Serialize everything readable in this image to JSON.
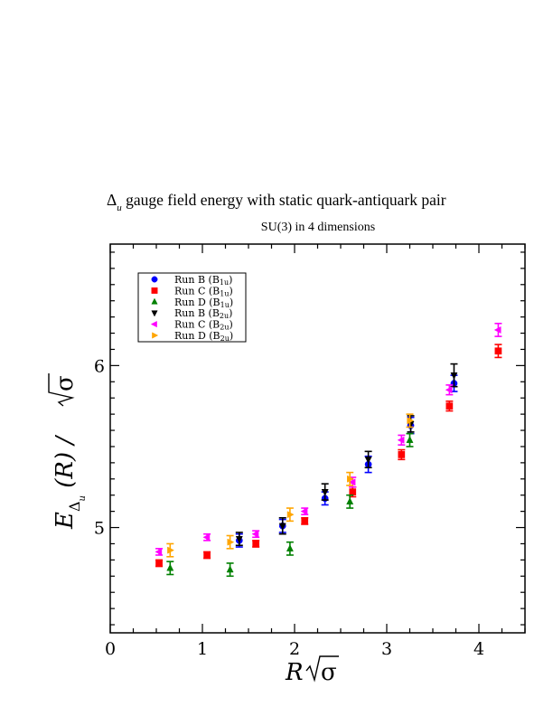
{
  "chart_data": {
    "type": "scatter",
    "title_symbol": "Δ",
    "title_subscript": "u",
    "title_rest": " gauge field energy with static quark-antiquark pair",
    "subtitle": "SU(3) in 4 dimensions",
    "xlabel_R": "R",
    "xlabel_sigma": "σ",
    "ylabel_E": "E",
    "ylabel_sub": "Δ",
    "ylabel_subsub": "u",
    "ylabel_mid": " (R) / ",
    "ylabel_sigma": "σ",
    "xlim": [
      0,
      4.5
    ],
    "ylim": [
      4.35,
      6.75
    ],
    "xticks": [
      0,
      1,
      2,
      3,
      4
    ],
    "yticks": [
      5,
      6
    ],
    "legend_position": "top-left",
    "series": [
      {
        "name": "Run B (B1u)",
        "legend_main": "Run B (B",
        "legend_sub": "1u",
        "legend_tail": ")",
        "marker": "circle",
        "color": "#0000ff",
        "points": [
          {
            "x": 1.4,
            "y": 4.92,
            "err": 0.04
          },
          {
            "x": 1.87,
            "y": 5.01,
            "err": 0.04
          },
          {
            "x": 2.33,
            "y": 5.18,
            "err": 0.04
          },
          {
            "x": 2.8,
            "y": 5.39,
            "err": 0.05
          },
          {
            "x": 3.26,
            "y": 5.63,
            "err": 0.05
          },
          {
            "x": 3.73,
            "y": 5.89,
            "err": 0.05
          }
        ]
      },
      {
        "name": "Run C (B1u)",
        "legend_main": "Run C (B",
        "legend_sub": "1u",
        "legend_tail": ")",
        "marker": "square",
        "color": "#ff0000",
        "points": [
          {
            "x": 0.53,
            "y": 4.78,
            "err": 0.02
          },
          {
            "x": 1.05,
            "y": 4.83,
            "err": 0.02
          },
          {
            "x": 1.58,
            "y": 4.9,
            "err": 0.02
          },
          {
            "x": 2.11,
            "y": 5.04,
            "err": 0.02
          },
          {
            "x": 2.63,
            "y": 5.22,
            "err": 0.03
          },
          {
            "x": 3.16,
            "y": 5.45,
            "err": 0.03
          },
          {
            "x": 3.68,
            "y": 5.75,
            "err": 0.03
          },
          {
            "x": 4.21,
            "y": 6.09,
            "err": 0.04
          }
        ]
      },
      {
        "name": "Run D (B1u)",
        "legend_main": "Run D (B",
        "legend_sub": "1u",
        "legend_tail": ")",
        "marker": "triangle-up",
        "color": "#008000",
        "points": [
          {
            "x": 0.65,
            "y": 4.75,
            "err": 0.04
          },
          {
            "x": 1.3,
            "y": 4.74,
            "err": 0.04
          },
          {
            "x": 1.95,
            "y": 4.87,
            "err": 0.04
          },
          {
            "x": 2.6,
            "y": 5.16,
            "err": 0.04
          },
          {
            "x": 3.25,
            "y": 5.54,
            "err": 0.04
          }
        ]
      },
      {
        "name": "Run B (B2u)",
        "legend_main": "Run B (B",
        "legend_sub": "2u",
        "legend_tail": ")",
        "marker": "triangle-down",
        "color": "#000000",
        "points": [
          {
            "x": 1.4,
            "y": 4.93,
            "err": 0.04
          },
          {
            "x": 1.87,
            "y": 5.01,
            "err": 0.05
          },
          {
            "x": 2.33,
            "y": 5.22,
            "err": 0.05
          },
          {
            "x": 2.8,
            "y": 5.42,
            "err": 0.05
          },
          {
            "x": 3.26,
            "y": 5.64,
            "err": 0.05
          },
          {
            "x": 3.73,
            "y": 5.94,
            "err": 0.07
          }
        ]
      },
      {
        "name": "Run C (B2u)",
        "legend_main": "Run C (B",
        "legend_sub": "2u",
        "legend_tail": ")",
        "marker": "triangle-left",
        "color": "#ff00ff",
        "points": [
          {
            "x": 0.53,
            "y": 4.85,
            "err": 0.02
          },
          {
            "x": 1.05,
            "y": 4.94,
            "err": 0.02
          },
          {
            "x": 1.58,
            "y": 4.96,
            "err": 0.02
          },
          {
            "x": 2.11,
            "y": 5.1,
            "err": 0.02
          },
          {
            "x": 2.63,
            "y": 5.28,
            "err": 0.03
          },
          {
            "x": 3.16,
            "y": 5.54,
            "err": 0.03
          },
          {
            "x": 3.68,
            "y": 5.85,
            "err": 0.03
          },
          {
            "x": 4.21,
            "y": 6.22,
            "err": 0.04
          }
        ]
      },
      {
        "name": "Run D (B2u)",
        "legend_main": "Run D (B",
        "legend_sub": "2u",
        "legend_tail": ")",
        "marker": "triangle-right",
        "color": "#ffa500",
        "points": [
          {
            "x": 0.65,
            "y": 4.86,
            "err": 0.04
          },
          {
            "x": 1.3,
            "y": 4.91,
            "err": 0.04
          },
          {
            "x": 1.95,
            "y": 5.08,
            "err": 0.04
          },
          {
            "x": 2.6,
            "y": 5.3,
            "err": 0.04
          },
          {
            "x": 3.25,
            "y": 5.66,
            "err": 0.04
          }
        ]
      }
    ]
  }
}
